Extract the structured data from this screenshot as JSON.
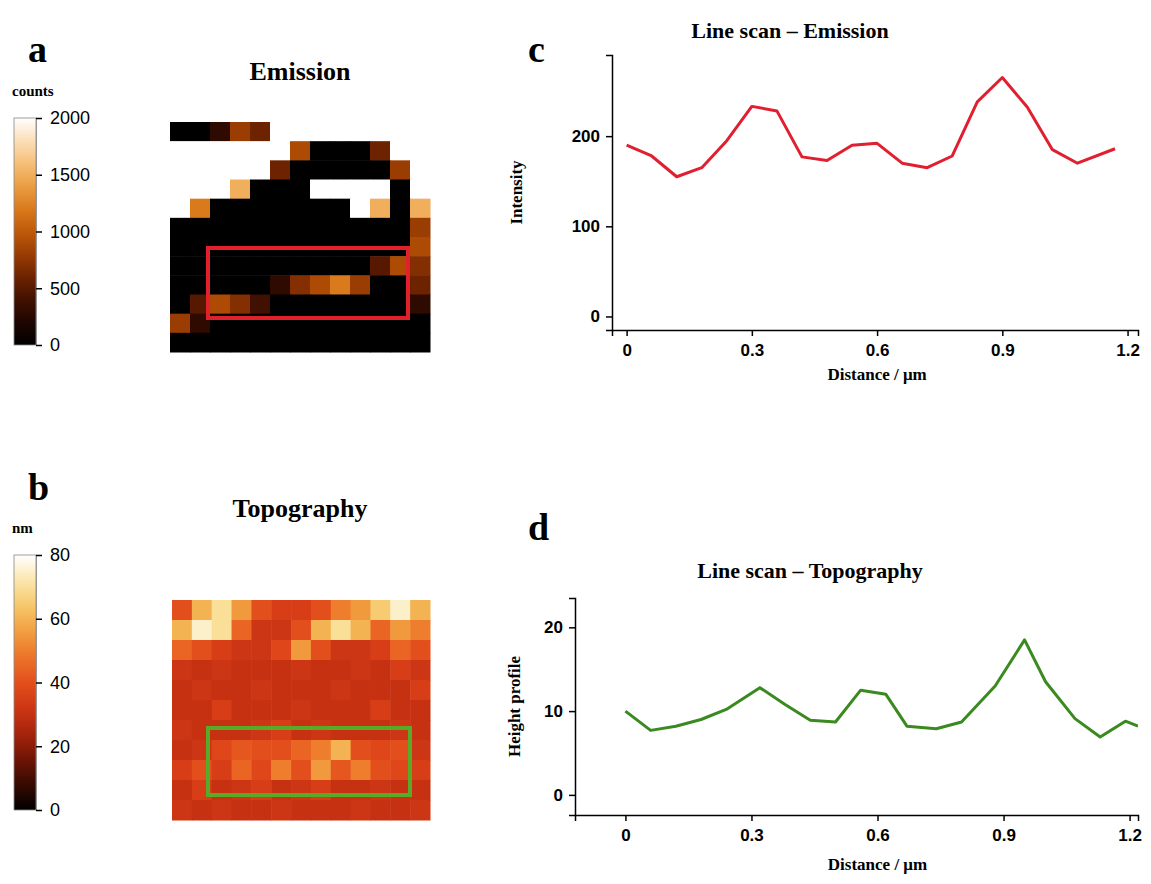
{
  "chart_data": [
    {
      "type": "heatmap",
      "panel_label": "a",
      "title": "Emission",
      "tick_labels": false,
      "cells": [
        [
          0,
          0,
          300,
          800,
          600,
          2000,
          2000,
          2000,
          2000,
          2000,
          2000,
          2000,
          2000
        ],
        [
          2000,
          2000,
          2000,
          2000,
          2000,
          2000,
          900,
          0,
          0,
          0,
          600,
          2000,
          2000
        ],
        [
          2000,
          2000,
          2000,
          2000,
          2000,
          600,
          0,
          0,
          0,
          0,
          0,
          800,
          2000
        ],
        [
          2000,
          2000,
          2000,
          1500,
          0,
          0,
          0,
          2000,
          2000,
          2000,
          2000,
          0,
          2000
        ],
        [
          2000,
          1200,
          0,
          0,
          0,
          0,
          0,
          0,
          0,
          2000,
          1500,
          0,
          1500
        ],
        [
          0,
          0,
          0,
          0,
          0,
          0,
          0,
          0,
          0,
          0,
          0,
          0,
          800
        ],
        [
          0,
          0,
          0,
          0,
          0,
          0,
          0,
          0,
          0,
          0,
          0,
          0,
          900
        ],
        [
          0,
          0,
          0,
          0,
          0,
          0,
          0,
          0,
          0,
          0,
          500,
          900,
          700
        ],
        [
          0,
          0,
          0,
          0,
          0,
          300,
          700,
          900,
          1200,
          800,
          0,
          0,
          600
        ],
        [
          0,
          500,
          900,
          700,
          400,
          0,
          0,
          0,
          0,
          0,
          0,
          0,
          300
        ],
        [
          800,
          300,
          0,
          0,
          0,
          0,
          0,
          0,
          0,
          0,
          0,
          0,
          0
        ],
        [
          0,
          0,
          0,
          0,
          0,
          0,
          0,
          0,
          0,
          0,
          0,
          0,
          0
        ]
      ],
      "colorbar": {
        "label": "counts",
        "range": [
          0,
          2000
        ],
        "ticks": [
          0,
          500,
          1000,
          1500,
          2000
        ]
      }
    },
    {
      "type": "heatmap",
      "panel_label": "b",
      "title": "Topography",
      "tick_labels": false,
      "cells": [
        [
          40,
          60,
          70,
          55,
          40,
          35,
          35,
          40,
          50,
          55,
          65,
          75,
          60
        ],
        [
          60,
          75,
          70,
          45,
          32,
          32,
          40,
          60,
          70,
          60,
          45,
          55,
          50
        ],
        [
          45,
          40,
          35,
          32,
          32,
          38,
          55,
          40,
          32,
          32,
          35,
          45,
          40
        ],
        [
          32,
          30,
          32,
          30,
          30,
          30,
          32,
          30,
          30,
          32,
          30,
          35,
          32
        ],
        [
          30,
          32,
          30,
          30,
          32,
          30,
          30,
          30,
          32,
          30,
          30,
          30,
          35
        ],
        [
          30,
          30,
          35,
          30,
          30,
          30,
          32,
          30,
          30,
          30,
          35,
          30,
          30
        ],
        [
          32,
          30,
          30,
          30,
          32,
          35,
          30,
          32,
          30,
          30,
          30,
          32,
          30
        ],
        [
          30,
          32,
          38,
          42,
          40,
          40,
          45,
          50,
          60,
          40,
          38,
          40,
          32
        ],
        [
          35,
          40,
          35,
          45,
          38,
          50,
          40,
          55,
          42,
          50,
          40,
          38,
          35
        ],
        [
          30,
          35,
          30,
          32,
          35,
          30,
          32,
          35,
          30,
          30,
          32,
          30,
          30
        ],
        [
          32,
          30,
          32,
          30,
          30,
          32,
          30,
          30,
          30,
          32,
          30,
          30,
          32
        ]
      ],
      "colorbar": {
        "label": "nm",
        "range": [
          0,
          80
        ],
        "ticks": [
          0,
          20,
          40,
          60,
          80
        ]
      }
    },
    {
      "type": "line",
      "panel_label": "c",
      "title": "Line scan – Emission",
      "x_label": "Distance / μm",
      "y_label": "Intensity",
      "color": "#e02030",
      "x": [
        0,
        0.06,
        0.12,
        0.18,
        0.24,
        0.3,
        0.36,
        0.42,
        0.48,
        0.54,
        0.6,
        0.66,
        0.72,
        0.78,
        0.84,
        0.9,
        0.96,
        1.02,
        1.08,
        1.17
      ],
      "values": [
        190,
        178,
        155,
        165,
        195,
        233,
        228,
        177,
        173,
        190,
        192,
        170,
        165,
        178,
        238,
        265,
        232,
        185,
        170,
        186
      ],
      "xlim": [
        -0.035,
        1.225
      ],
      "ylim": [
        -15,
        290
      ],
      "xticks": [
        0,
        0.3,
        0.6,
        0.9,
        1.2
      ],
      "yticks": [
        0,
        100,
        200
      ]
    },
    {
      "type": "line",
      "panel_label": "d",
      "title": "Line scan – Topography",
      "x_label": "Distance / μm",
      "y_label": "Height profile",
      "color": "#3a8a20",
      "x": [
        0,
        0.06,
        0.12,
        0.18,
        0.24,
        0.32,
        0.38,
        0.44,
        0.5,
        0.56,
        0.62,
        0.67,
        0.74,
        0.8,
        0.88,
        0.95,
        1.0,
        1.07,
        1.13,
        1.19,
        1.22
      ],
      "values": [
        10,
        7.7,
        8.2,
        9,
        10.2,
        12.8,
        10.8,
        8.9,
        8.7,
        12.5,
        12,
        8.2,
        7.9,
        8.7,
        13,
        18.5,
        13.5,
        9.1,
        6.9,
        8.8,
        8.2
      ],
      "xlim": [
        -0.12,
        1.22
      ],
      "ylim": [
        -2.4,
        23.5
      ],
      "xticks": [
        0,
        0.3,
        0.6,
        0.9,
        1.2
      ],
      "yticks": [
        0,
        10,
        20
      ]
    }
  ]
}
